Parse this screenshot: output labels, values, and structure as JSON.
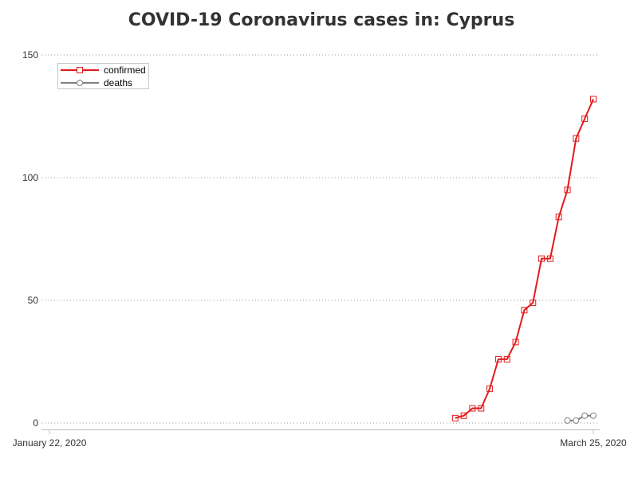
{
  "colors": {
    "confirmed": "#e31a1c",
    "deaths": "#7f7f7f",
    "title": "#333333"
  },
  "chart_data": {
    "type": "line",
    "title": "COVID-19 Coronavirus cases in: Cyprus",
    "xlabel": "",
    "ylabel": "",
    "x_range": [
      "2020-01-22",
      "2020-03-25"
    ],
    "x_tick_labels": [
      {
        "date": "2020-01-22",
        "label": "January 22, 2020"
      },
      {
        "date": "2020-03-25",
        "label": "March 25, 2020"
      }
    ],
    "ylim": [
      0,
      150
    ],
    "y_ticks": [
      0,
      50,
      100,
      150
    ],
    "grid": true,
    "legend_position": "top-left",
    "series": [
      {
        "name": "confirmed",
        "color": "#e31a1c",
        "marker": "square",
        "points": [
          [
            "2020-03-09",
            2
          ],
          [
            "2020-03-10",
            3
          ],
          [
            "2020-03-11",
            6
          ],
          [
            "2020-03-12",
            6
          ],
          [
            "2020-03-13",
            14
          ],
          [
            "2020-03-14",
            26
          ],
          [
            "2020-03-15",
            26
          ],
          [
            "2020-03-16",
            33
          ],
          [
            "2020-03-17",
            46
          ],
          [
            "2020-03-18",
            49
          ],
          [
            "2020-03-19",
            67
          ],
          [
            "2020-03-20",
            67
          ],
          [
            "2020-03-21",
            84
          ],
          [
            "2020-03-22",
            95
          ],
          [
            "2020-03-23",
            116
          ],
          [
            "2020-03-24",
            124
          ],
          [
            "2020-03-25",
            132
          ]
        ]
      },
      {
        "name": "deaths",
        "color": "#7f7f7f",
        "marker": "circle",
        "points": [
          [
            "2020-03-22",
            1
          ],
          [
            "2020-03-23",
            1
          ],
          [
            "2020-03-24",
            3
          ],
          [
            "2020-03-25",
            3
          ]
        ]
      }
    ]
  }
}
